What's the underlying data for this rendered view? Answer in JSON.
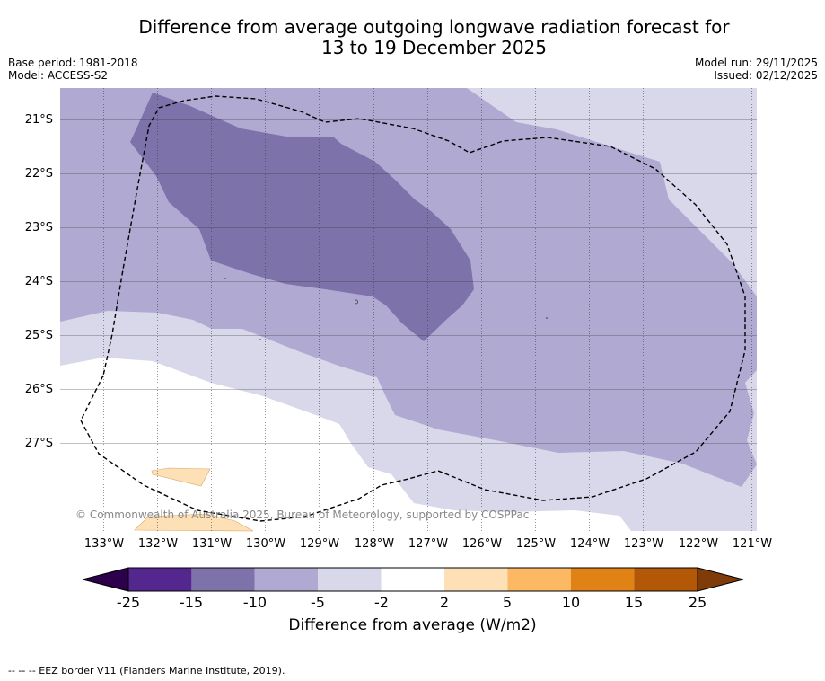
{
  "title": {
    "line1": "Difference from average outgoing longwave radiation forecast for",
    "line2": "13 to 19 December 2025"
  },
  "meta_left": [
    "Base period: 1981-2018",
    "Model: ACCESS-S2"
  ],
  "meta_right": [
    "Model run: 29/11/2025",
    "Issued: 02/12/2025"
  ],
  "lat_labels": [
    "21°S",
    "22°S",
    "23°S",
    "24°S",
    "25°S",
    "26°S",
    "27°S"
  ],
  "lon_labels": [
    "133°W",
    "132°W",
    "131°W",
    "130°W",
    "129°W",
    "128°W",
    "127°W",
    "126°W",
    "125°W",
    "124°W",
    "123°W",
    "122°W",
    "121°W"
  ],
  "colorbar": {
    "ticks": [
      "-25",
      "-15",
      "-10",
      "-5",
      "-2",
      "2",
      "5",
      "10",
      "15",
      "25"
    ],
    "colors": [
      "#54278f",
      "#7e72ab",
      "#b0aad2",
      "#d9d8ea",
      "#ffffff",
      "#fee0b6",
      "#fdb863",
      "#e08214",
      "#b35806"
    ],
    "under_color": "#2d004b",
    "over_color": "#7f3b08",
    "label": "Difference from average (W/m2)"
  },
  "copyright": "© Commonwealth of Australia 2025, Bureau of Meteorology, supported by COSPPac",
  "footnote": "--  --  -- EEZ border V11 (Flanders Marine Institute, 2019)."
}
